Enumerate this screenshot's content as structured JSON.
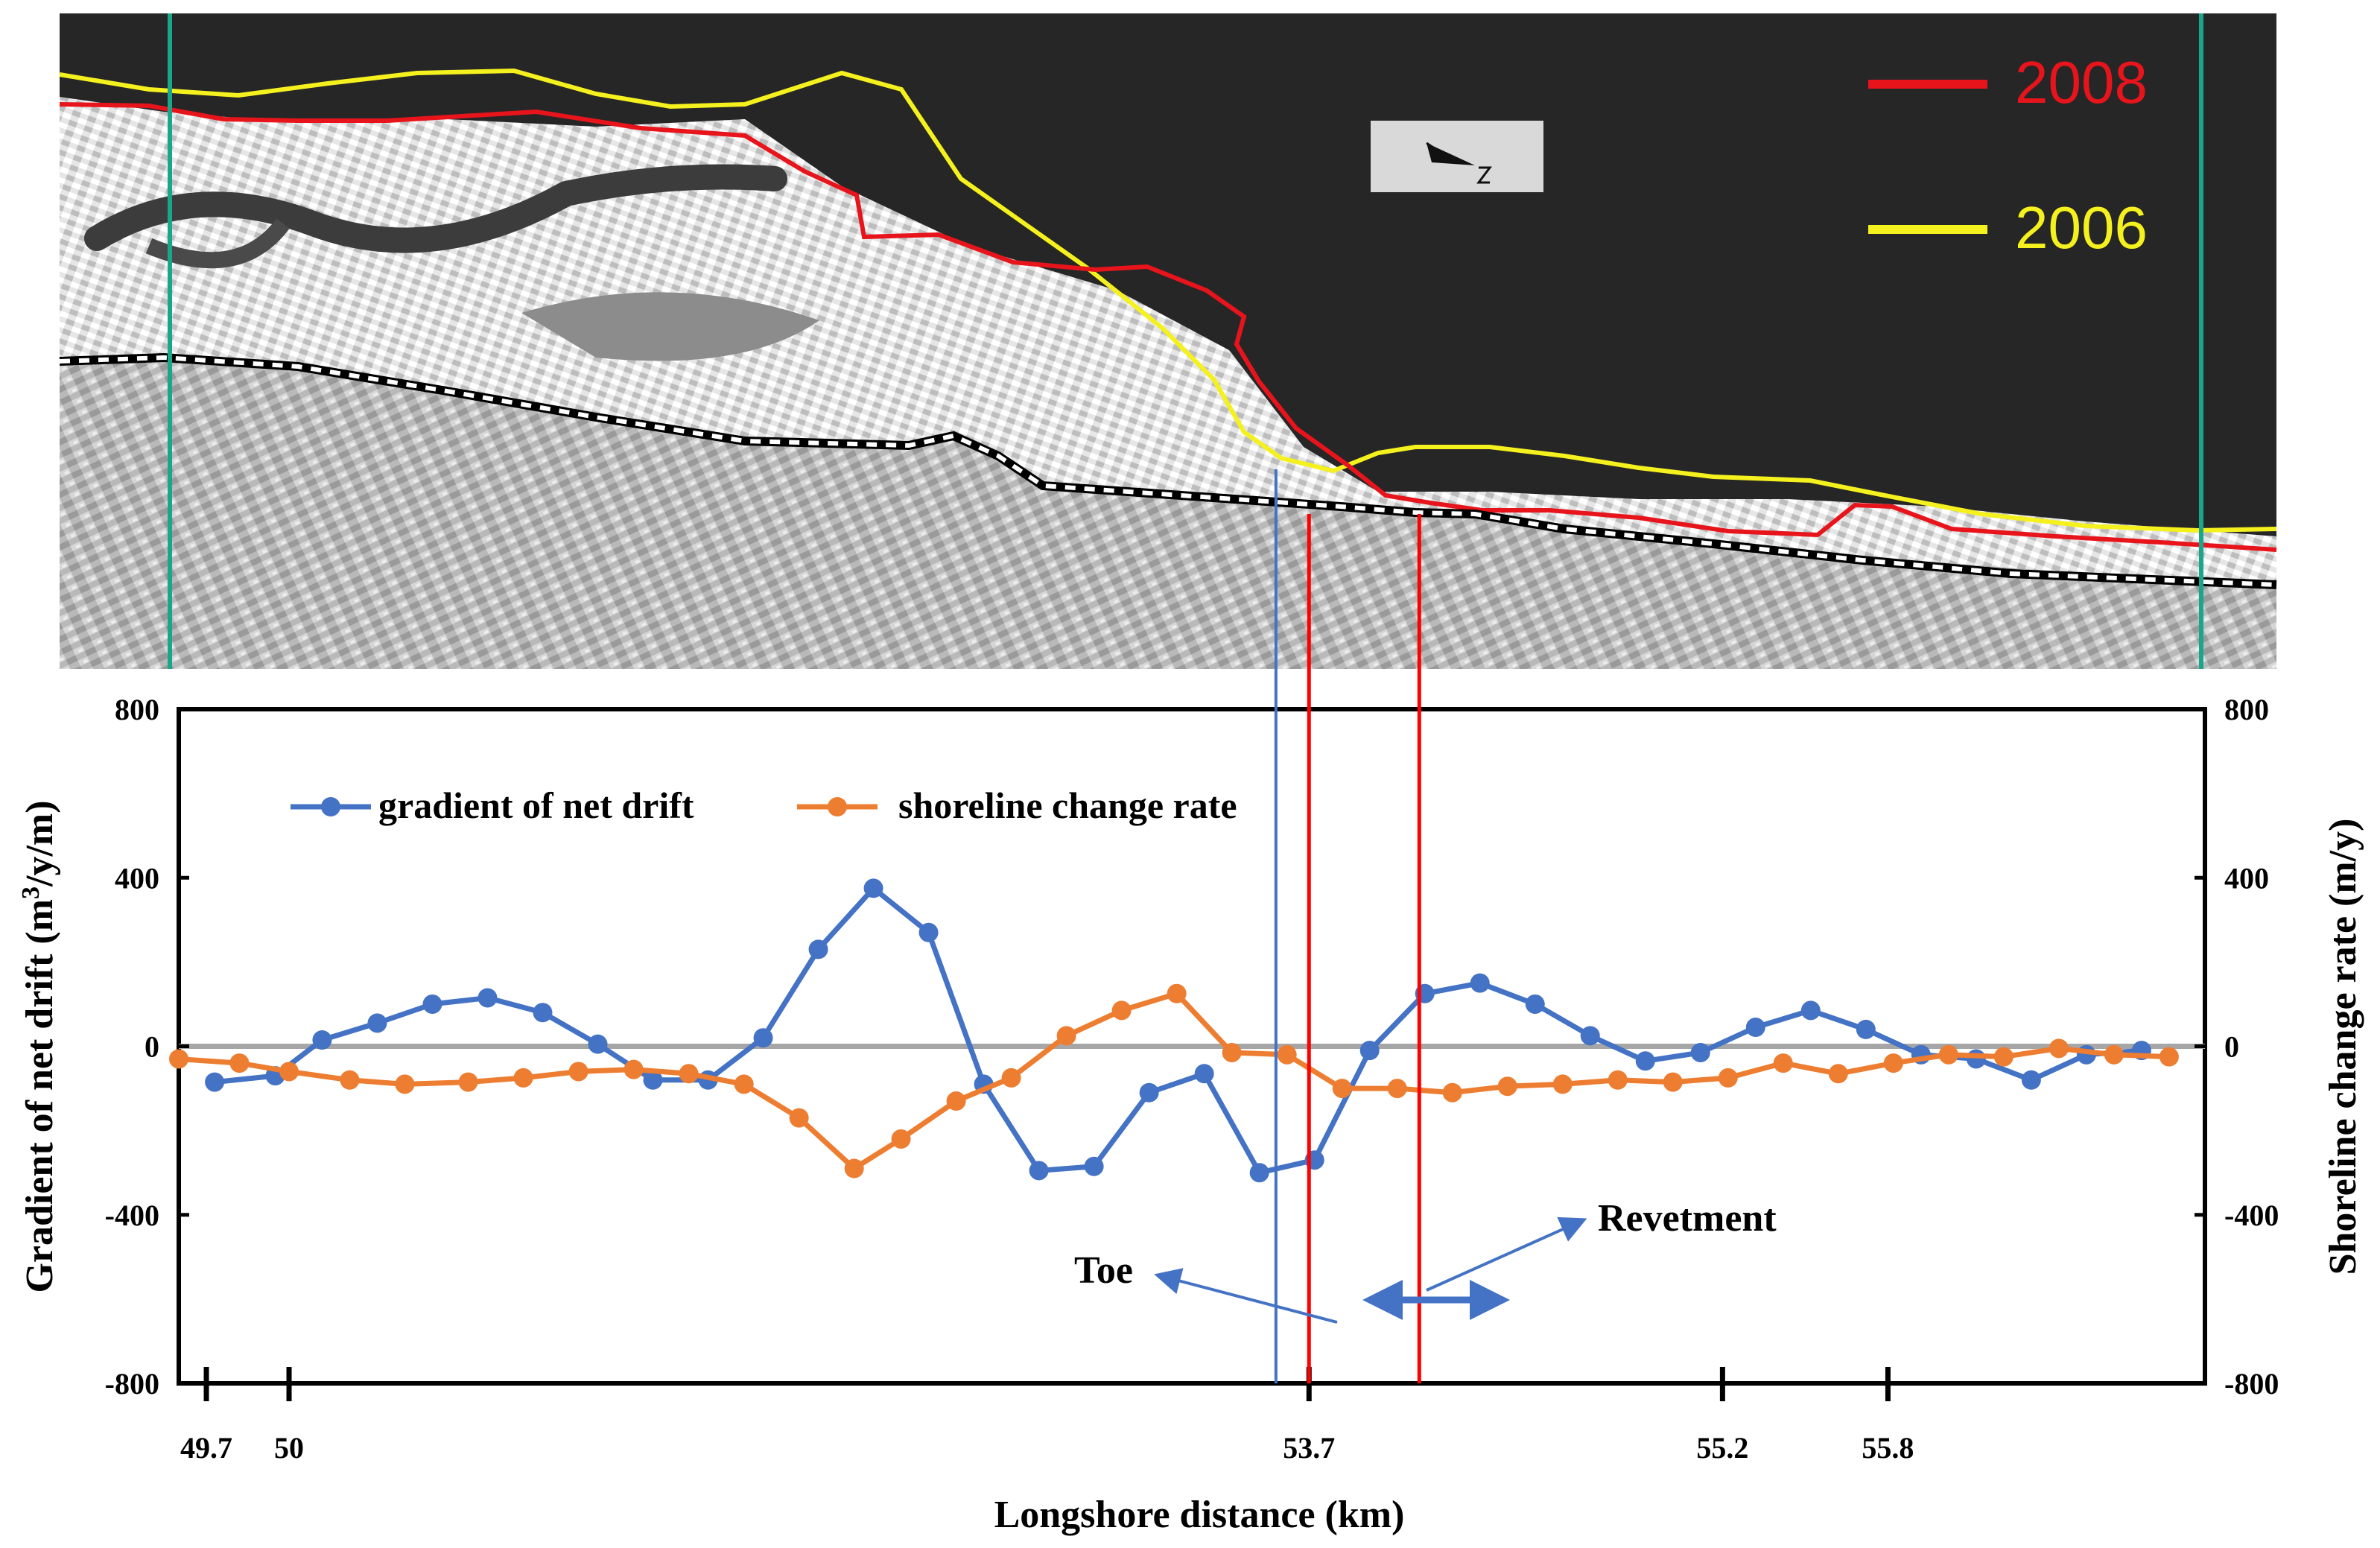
{
  "figure": {
    "legend_map": {
      "entries": [
        {
          "label": "2008",
          "color": "#e8141c"
        },
        {
          "label": "2006",
          "color": "#f4f11e"
        }
      ]
    },
    "colors": {
      "sea": "#262626",
      "shoreline_2008": "#e8141c",
      "shoreline_2006": "#f4f11e",
      "profile_line": "#1aa68a",
      "toe_line": "#4472c4",
      "revetment_line": "#ff0000"
    },
    "north_arrow": {
      "icon": "north-arrow-icon",
      "letter": "N"
    }
  },
  "chart_data": {
    "type": "line",
    "xlabel": "Longshore distance (km)",
    "ylabel_left": "Gradient of net drift (m³/y/m)",
    "ylabel_left_main": "Gradient of net drift (m",
    "ylabel_left_sup": "3",
    "ylabel_left_tail": "/y/m)",
    "ylabel_right": "Shoreline change rate (m/y)",
    "xlim": [
      49.6,
      56.95
    ],
    "ylim": [
      -800,
      800
    ],
    "y_ticks": [
      "800",
      "400",
      "0",
      "-400",
      "-800"
    ],
    "x_ticks": [
      {
        "value": 49.7,
        "label": "49.7"
      },
      {
        "value": 50.0,
        "label": "50"
      },
      {
        "value": 53.7,
        "label": "53.7"
      },
      {
        "value": 55.2,
        "label": "55.2"
      },
      {
        "value": 55.8,
        "label": "55.8"
      }
    ],
    "grid": false,
    "legend_position": "top-left",
    "zero_line": true,
    "series": [
      {
        "name": "gradient of net drift",
        "color": "#4472c4",
        "axis": "left",
        "x": [
          49.73,
          49.95,
          50.12,
          50.32,
          50.52,
          50.72,
          50.92,
          51.12,
          51.32,
          51.52,
          51.72,
          51.92,
          52.12,
          52.32,
          52.52,
          52.72,
          52.92,
          53.12,
          53.32,
          53.52,
          53.72,
          53.92,
          54.12,
          54.32,
          54.52,
          54.72,
          54.92,
          55.12,
          55.32,
          55.52,
          55.72,
          55.92,
          56.12,
          56.32,
          56.52,
          56.72
        ],
        "y": [
          -85,
          -70,
          15,
          55,
          100,
          115,
          80,
          5,
          -80,
          -80,
          20,
          230,
          375,
          270,
          -90,
          -295,
          -285,
          -110,
          -65,
          -300,
          -270,
          -10,
          125,
          150,
          100,
          25,
          -35,
          -15,
          45,
          85,
          40,
          -20,
          -30,
          -80,
          -20,
          -10
        ]
      },
      {
        "name": "shoreline change rate",
        "color": "#ed7d31",
        "axis": "right",
        "x": [
          49.6,
          49.82,
          50.0,
          50.22,
          50.42,
          50.65,
          50.85,
          51.05,
          51.25,
          51.45,
          51.65,
          51.85,
          52.05,
          52.22,
          52.42,
          52.62,
          52.82,
          53.02,
          53.22,
          53.42,
          53.62,
          53.82,
          54.02,
          54.22,
          54.42,
          54.62,
          54.82,
          55.02,
          55.22,
          55.42,
          55.62,
          55.82,
          56.02,
          56.22,
          56.42,
          56.62,
          56.82
        ],
        "y": [
          -30,
          -40,
          -60,
          -80,
          -90,
          -85,
          -75,
          -60,
          -55,
          -65,
          -90,
          -170,
          -290,
          -220,
          -130,
          -75,
          25,
          85,
          125,
          -15,
          -20,
          -100,
          -100,
          -110,
          -95,
          -90,
          -80,
          -85,
          -75,
          -40,
          -65,
          -40,
          -20,
          -25,
          -5,
          -20,
          -25
        ]
      }
    ],
    "vertical_markers": [
      {
        "x": 53.58,
        "color": "#4472c4",
        "role": "toe"
      },
      {
        "x": 53.7,
        "color": "#ff0000",
        "role": "revetment-start"
      },
      {
        "x": 54.1,
        "color": "#ff0000",
        "role": "revetment-end"
      }
    ],
    "annotations": [
      {
        "text": "Toe"
      },
      {
        "text": "Revetment"
      }
    ]
  }
}
